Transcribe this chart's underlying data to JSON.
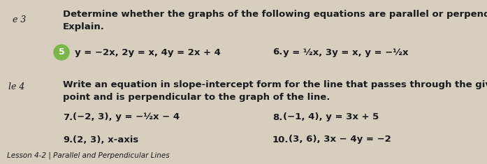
{
  "background_color": "#d6cfc0",
  "top_right_box_color": "#b0a898",
  "left_margin_e3": "e 3",
  "left_margin_le4": "le 4",
  "section3_line1": "Determine whether the graphs of the following equations are parallel or perpendicular.",
  "section3_line2": "Explain.",
  "problem5_circle_color": "#7ab648",
  "problem5_circle_text": "5",
  "problem5_text": "y = −2x, 2y = x, 4y = 2x + 4",
  "problem6_label": "6.",
  "problem6_text": "y = ½x, 3y = x, y = −½x",
  "section4_line1": "Write an equation in slope-intercept form for the line that passes through the given",
  "section4_line2": "point and is perpendicular to the graph of the line.",
  "problem7_label": "7.",
  "problem7_text": "(−2, 3), y = −½x − 4",
  "problem8_label": "8.",
  "problem8_text": "(−1, 4), y = 3x + 5",
  "problem9_label": "9.",
  "problem9_text": "(2, 3), x-axis",
  "problem10_label": "10.",
  "problem10_text": "(3, 6), 3x − 4y = −2",
  "bottom_text": "Lesson 4-2 | Parallel and Perpendicular Lines",
  "font_size_title": 9.5,
  "font_size_problems": 9.5,
  "font_size_margin": 9.0,
  "text_color": "#1a1a1a",
  "figw": 6.97,
  "figh": 2.35,
  "dpi": 100
}
